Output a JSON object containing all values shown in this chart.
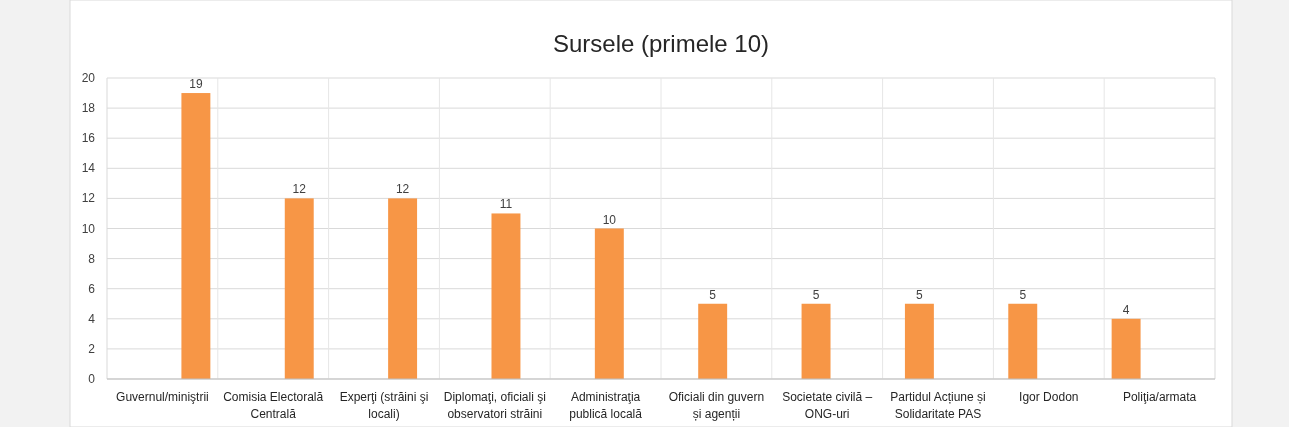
{
  "chart_data": {
    "type": "bar",
    "title": "Sursele (primele 10)",
    "categories": [
      "Guvernul/miniştrii",
      "Comisia Electorală Centrală",
      "Experţi (străini şi locali)",
      "Diplomaţi, oficiali şi observatori străini",
      "Administraţia publică locală",
      "Oficiali din guvern și agenții",
      "Societate civilă – ONG-uri",
      "Partidul Acțiune și Solidaritate PAS",
      "Igor Dodon",
      "Poliţia/armata"
    ],
    "values": [
      19,
      12,
      12,
      11,
      10,
      5,
      5,
      5,
      5,
      4
    ],
    "color": "#f79646",
    "ylim": [
      0,
      20
    ],
    "yticks": [
      0,
      2,
      4,
      6,
      8,
      10,
      12,
      14,
      16,
      18,
      20
    ],
    "grid": "y",
    "data_labels": true
  }
}
